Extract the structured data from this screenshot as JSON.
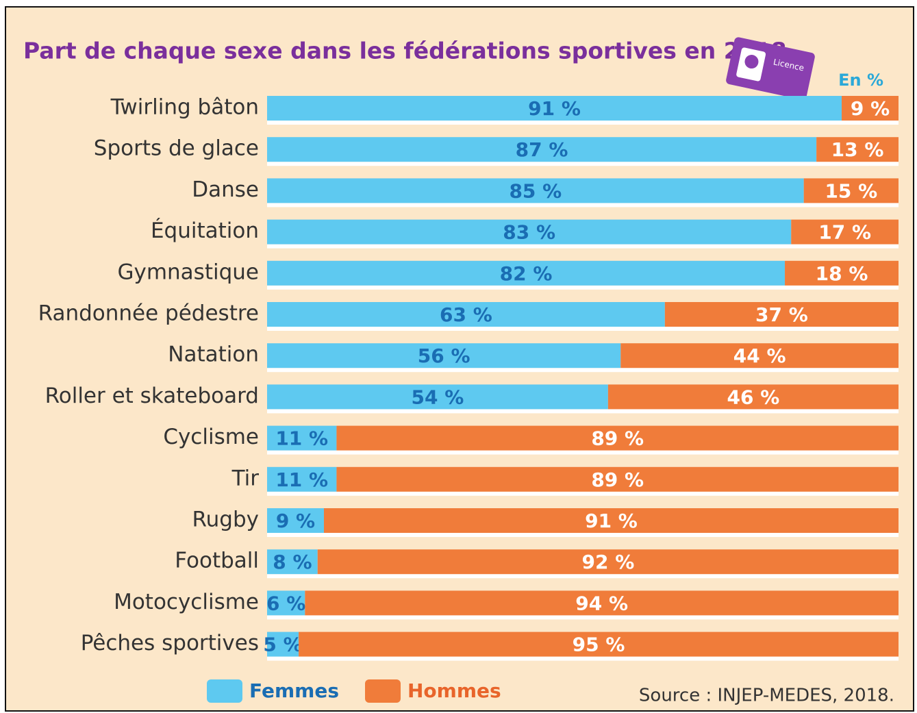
{
  "chart_data": {
    "type": "stacked_barh",
    "title": "Part de chaque sexe dans les fédérations sportives en 2018",
    "unit_note": "En %",
    "badge_text": "Licence",
    "source": "Source : INJEP-MEDES, 2018.",
    "categories": [
      "Twirling bâton",
      "Sports de glace",
      "Danse",
      "Équitation",
      "Gymnastique",
      "Randonnée pédestre",
      "Natation",
      "Roller et skateboard",
      "Cyclisme",
      "Tir",
      "Rugby",
      "Football",
      "Motocyclisme",
      "Pêches sportives"
    ],
    "xlim": [
      0,
      100
    ],
    "series": [
      {
        "name": "Femmes",
        "color": "#5ec9f0",
        "label_color": "#1a6db3",
        "values": [
          91,
          87,
          85,
          83,
          82,
          63,
          56,
          54,
          11,
          11,
          9,
          8,
          6,
          5
        ],
        "value_labels": [
          "91 %",
          "87 %",
          "85 %",
          "83 %",
          "82 %",
          "63 %",
          "56 %",
          "54 %",
          "11 %",
          "11 %",
          "9 %",
          "8 %",
          "6 %",
          "5 %"
        ]
      },
      {
        "name": "Hommes",
        "color": "#f07c3a",
        "label_color": "#ffffff",
        "values": [
          9,
          13,
          15,
          17,
          18,
          37,
          44,
          46,
          89,
          89,
          91,
          92,
          94,
          95
        ],
        "value_labels": [
          "9 %",
          "13 %",
          "15 %",
          "17 %",
          "18 %",
          "37 %",
          "44 %",
          "46 %",
          "89 %",
          "89 %",
          "91 %",
          "92 %",
          "94 %",
          "95 %"
        ]
      }
    ]
  }
}
